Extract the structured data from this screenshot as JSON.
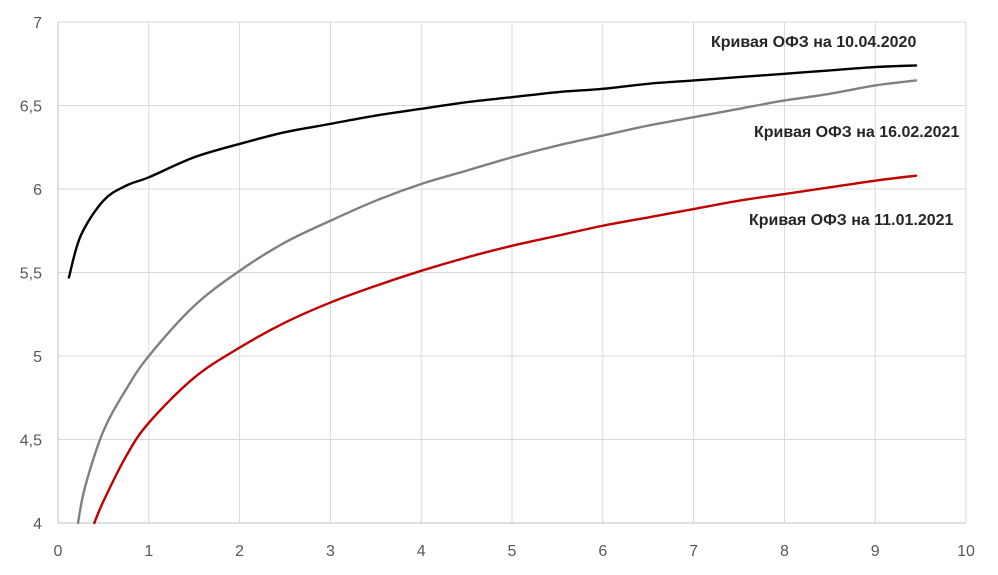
{
  "chart_data": {
    "type": "line",
    "title": "",
    "xlabel": "",
    "ylabel": "",
    "xlim": [
      0,
      10
    ],
    "ylim": [
      4,
      7
    ],
    "x_ticks": [
      "0",
      "1",
      "2",
      "3",
      "4",
      "5",
      "6",
      "7",
      "8",
      "9",
      "10"
    ],
    "y_ticks": [
      "4",
      "4,5",
      "5",
      "5,5",
      "6",
      "6,5",
      "7"
    ],
    "grid": true,
    "legend": "none",
    "series": [
      {
        "name": "Кривая ОФЗ на 10.04.2020",
        "color": "#000000",
        "x": [
          0.12,
          0.25,
          0.5,
          0.75,
          1,
          1.5,
          2,
          2.5,
          3,
          3.5,
          4,
          4.5,
          5,
          5.5,
          6,
          6.5,
          7,
          7.5,
          8,
          8.5,
          9,
          9.45
        ],
        "y": [
          5.47,
          5.72,
          5.93,
          6.02,
          6.07,
          6.19,
          6.27,
          6.34,
          6.39,
          6.44,
          6.48,
          6.52,
          6.55,
          6.58,
          6.6,
          6.63,
          6.65,
          6.67,
          6.69,
          6.71,
          6.73,
          6.74
        ]
      },
      {
        "name": "Кривая ОФЗ на 16.02.2021",
        "color": "#808080",
        "x": [
          0.22,
          0.3,
          0.5,
          0.75,
          1,
          1.5,
          2,
          2.5,
          3,
          3.5,
          4,
          4.5,
          5,
          5.5,
          6,
          6.5,
          7,
          7.5,
          8,
          8.5,
          9,
          9.45
        ],
        "y": [
          4.0,
          4.22,
          4.55,
          4.8,
          5.0,
          5.3,
          5.51,
          5.68,
          5.81,
          5.93,
          6.03,
          6.11,
          6.19,
          6.26,
          6.32,
          6.38,
          6.43,
          6.48,
          6.53,
          6.57,
          6.62,
          6.65
        ]
      },
      {
        "name": "Кривая ОФЗ на 11.01.2021",
        "color": "#c00000",
        "x": [
          0.4,
          0.5,
          0.75,
          1,
          1.5,
          2,
          2.5,
          3,
          3.5,
          4,
          4.5,
          5,
          5.5,
          6,
          6.5,
          7,
          7.5,
          8,
          8.5,
          9,
          9.45
        ],
        "y": [
          4.0,
          4.13,
          4.4,
          4.6,
          4.87,
          5.05,
          5.2,
          5.32,
          5.42,
          5.51,
          5.59,
          5.66,
          5.72,
          5.78,
          5.83,
          5.88,
          5.93,
          5.97,
          6.01,
          6.05,
          6.08
        ]
      }
    ]
  }
}
